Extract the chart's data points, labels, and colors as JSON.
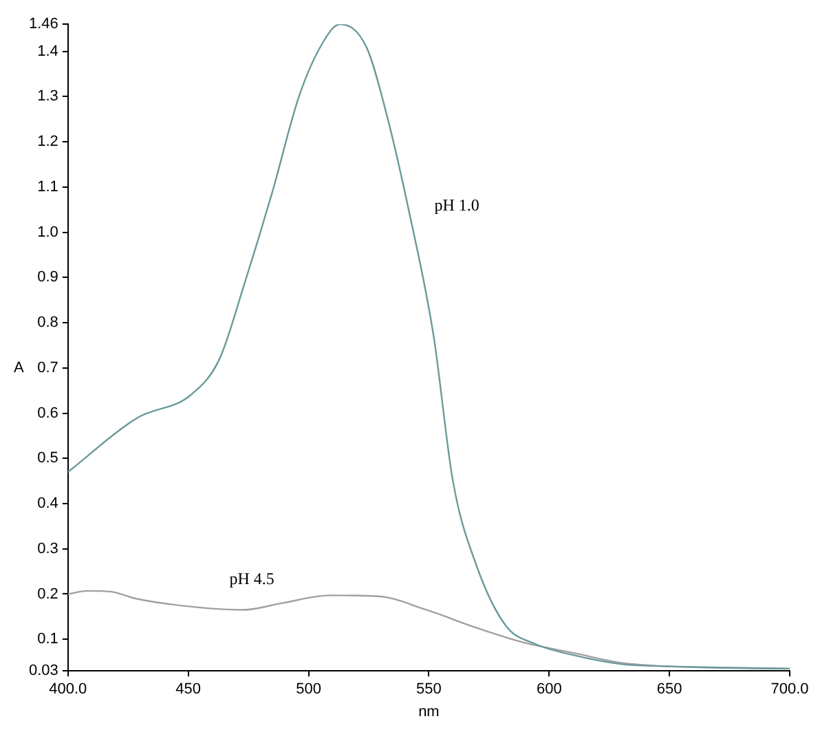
{
  "chart_data": {
    "type": "line",
    "xlabel": "nm",
    "ylabel": "A",
    "xlim": [
      400,
      700
    ],
    "xticks": [
      {
        "value": 400,
        "label": "400.0"
      },
      450,
      500,
      550,
      600,
      650,
      {
        "value": 700,
        "label": "700.0"
      }
    ],
    "ylim": [
      0.03,
      1.46
    ],
    "yticks": [
      0.03,
      0.1,
      0.2,
      0.3,
      0.4,
      0.5,
      0.6,
      0.7,
      0.8,
      0.9,
      {
        "value": 1.0,
        "label": "1.0"
      },
      1.1,
      1.2,
      1.3,
      1.4,
      1.46
    ],
    "grid": false,
    "legend": false,
    "marker": "none",
    "line_style": "solid",
    "series": [
      {
        "name": "pH 1.0",
        "color": "#6a9a9a",
        "x": [
          400,
          429,
          451,
          463,
          473,
          485,
          496,
          506,
          513,
          524,
          532,
          542,
          552,
          560,
          570,
          582,
          594,
          610,
          630,
          650,
          700
        ],
        "values": [
          0.47,
          0.59,
          0.64,
          0.72,
          0.88,
          1.09,
          1.3,
          1.42,
          1.46,
          1.41,
          1.27,
          1.04,
          0.77,
          0.45,
          0.26,
          0.13,
          0.09,
          0.065,
          0.045,
          0.04,
          0.035
        ]
      },
      {
        "name": "pH 4.5",
        "color": "#a0a0a0",
        "x": [
          400,
          408,
          418,
          428,
          455,
          473,
          489,
          509,
          529,
          549,
          570,
          590,
          610,
          630,
          650,
          700
        ],
        "values": [
          0.2,
          0.207,
          0.205,
          0.19,
          0.17,
          0.165,
          0.18,
          0.197,
          0.195,
          0.165,
          0.125,
          0.092,
          0.07,
          0.048,
          0.04,
          0.035
        ]
      }
    ]
  }
}
